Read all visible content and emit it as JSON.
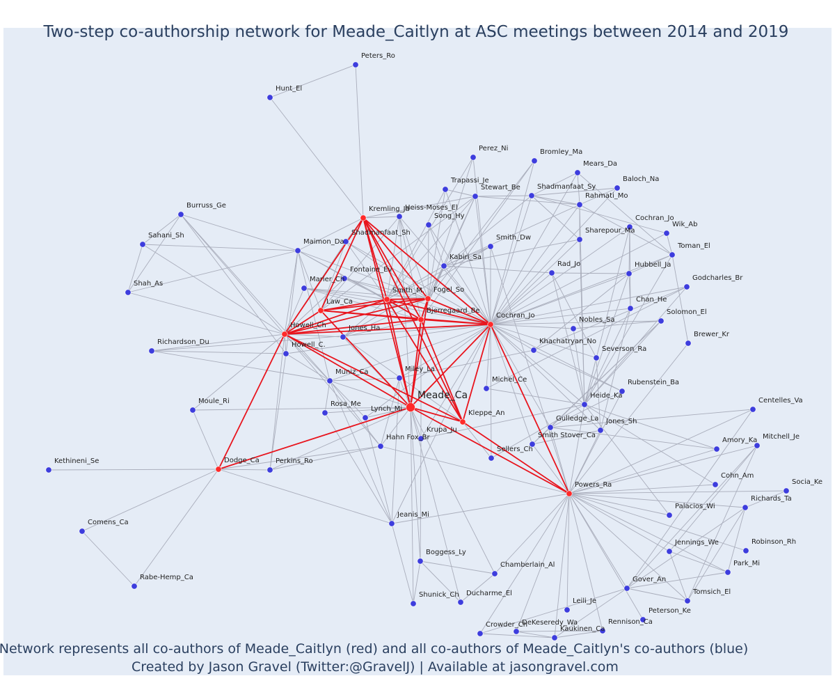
{
  "title": "Two-step co-authorship network for Meade_Caitlyn at ASC meetings between 2014 and 2019",
  "footer": {
    "line1": "Network represents all co-authors of Meade_Caitlyn (red) and all co-authors of Meade_Caitlyn's co-authors (blue)",
    "line2": "Created by Jason Gravel (Twitter:@GravelJ) | Available at jasongravel.com"
  },
  "colors": {
    "background": "#e5ecf6",
    "red_node": "#ff2a2a",
    "blue_node": "#3d3ddd",
    "red_edge": "#e8141d",
    "gray_edge": "#a9adbb",
    "text": "#2a3f5f"
  },
  "center": "Meade_Ca",
  "red_nodes": [
    "Meade_Ca",
    "Kremling_Ja",
    "Smith_M.",
    "Fogel_So",
    "Law_Ca",
    "Bjerregaard_Be",
    "Howell_Ch",
    "Cochran_Jo",
    "Kleppe_An",
    "Dodge_Ca",
    "Powers_Ra"
  ],
  "blue_nodes": [
    "Peters_Ro",
    "Hunt_El",
    "Perez_Ni",
    "Bromley_Ma",
    "Mears_Da",
    "Trapassi_Je",
    "Stewart_Be",
    "Shadmanfaat_Sy",
    "Baloch_Na",
    "Rahmati_Mo",
    "Burruss_Ge",
    "Heiss-Moses_El",
    "Song_Hy",
    "Cochran_Jo2",
    "Wik_Ab",
    "Sahani_Sh",
    "Shadmanfaat_Sh",
    "Maimon_Da",
    "Smith_Dw",
    "Sharepour_Ma",
    "Toman_El",
    "Kabiri_Sa",
    "Fontaine_Ev",
    "Rad_Jo",
    "Hubbell_Ja",
    "Shah_As",
    "Marier_Ch",
    "Godcharles_Br",
    "Chan_He",
    "Jones_Ha",
    "Nobles_Sa",
    "Solomon_El",
    "Richardson_Du",
    "Howell_C.",
    "Khachatryan_No",
    "Brewer_Kr",
    "Severson_Ra",
    "Miley_La",
    "Muniz_Ca",
    "Michel_Ce",
    "Rubenstein_Ba",
    "Moule_Ri",
    "Heide_Ka",
    "Centelles_Va",
    "Rosa_Me",
    "Lynch_Mi",
    "Gulledge_La",
    "Jones_Sh",
    "Krupa_Ju",
    "Smith_Stover_Ca",
    "Hahn_Fox_Br",
    "Amory_Ka",
    "Mitchell_Je",
    "Sellers_Ch",
    "Kethineni_Se",
    "Perkins_Ro",
    "Cohn_Am",
    "Socia_Ke",
    "Richards_Ta",
    "Palacios_Wi",
    "Jeanis_Mi",
    "Comens_Ca",
    "Robinson_Rh",
    "Jennings_We",
    "Boggess_Ly",
    "Chamberlain_Al",
    "Park_Mi",
    "Rabe-Hemp_Ca",
    "Gover_An",
    "Tomsich_El",
    "Shunick_Ch",
    "Ducharme_El",
    "Leili_Je",
    "Peterson_Ke",
    "Crowder_Ch",
    "DeKeseredy_Wa",
    "Rennison_Ca",
    "Kaukinen_Ca"
  ],
  "node_labels": {
    "Meade_Ca": "Meade_Ca",
    "Peters_Ro": "Peters_Ro",
    "Hunt_El": "Hunt_El",
    "Perez_Ni": "Perez_Ni",
    "Bromley_Ma": "Bromley_Ma",
    "Mears_Da": "Mears_Da",
    "Trapassi_Je": "Trapassi_Je",
    "Stewart_Be": "Stewart_Be",
    "Shadmanfaat_Sy": "Shadmanfaat_Sy",
    "Baloch_Na": "Baloch_Na",
    "Rahmati_Mo": "Rahmati_Mo",
    "Burruss_Ge": "Burruss_Ge",
    "Kremling_Ja": "Kremling_Ja",
    "Heiss-Moses_El": "Heiss-Moses_El",
    "Song_Hy": "Song_Hy",
    "Cochran_Jo2": "Cochran_Jo",
    "Wik_Ab": "Wik_Ab",
    "Sahani_Sh": "Sahani_Sh",
    "Shadmanfaat_Sh": "Shadmanfaat_Sh",
    "Maimon_Da": "Maimon_Da",
    "Smith_Dw": "Smith_Dw",
    "Sharepour_Ma": "Sharepour_Ma",
    "Toman_El": "Toman_El",
    "Kabiri_Sa": "Kabiri_Sa",
    "Fontaine_Ev": "Fontaine_Ev",
    "Rad_Jo": "Rad_Jo",
    "Hubbell_Ja": "Hubbell_Ja",
    "Shah_As": "Shah_As",
    "Marier_Ch": "Marier_Ch",
    "Smith_M.": "Smith_M.",
    "Fogel_So": "Fogel_So",
    "Godcharles_Br": "Godcharles_Br",
    "Law_Ca": "Law_Ca",
    "Bjerregaard_Be": "Bjerregaard_Be",
    "Chan_He": "Chan_He",
    "Cochran_Jo": "Cochran_Jo",
    "Howell_Ch": "Howell_Ch",
    "Jones_Ha": "Jones_Ha",
    "Nobles_Sa": "Nobles_Sa",
    "Solomon_El": "Solomon_El",
    "Richardson_Du": "Richardson_Du",
    "Howell_C.": "Howell_C.",
    "Khachatryan_No": "Khachatryan_No",
    "Brewer_Kr": "Brewer_Kr",
    "Severson_Ra": "Severson_Ra",
    "Miley_La": "Miley_La",
    "Muniz_Ca": "Muniz_Ca",
    "Michel_Ce": "Michel_Ce",
    "Rubenstein_Ba": "Rubenstein_Ba",
    "Moule_Ri": "Moule_Ri",
    "Heide_Ka": "Heide_Ka",
    "Centelles_Va": "Centelles_Va",
    "Rosa_Me": "Rosa_Me",
    "Lynch_Mi": "Lynch_Mi",
    "Kleppe_An": "Kleppe_An",
    "Gulledge_La": "Gulledge_La",
    "Jones_Sh": "Jones_Sh",
    "Krupa_Ju": "Krupa_Ju",
    "Smith_Stover_Ca": "Smith Stover_Ca",
    "Hahn_Fox_Br": "Hahn Fox_Br",
    "Amory_Ka": "Amory_Ka",
    "Mitchell_Je": "Mitchell_Je",
    "Sellers_Ch": "Sellers_Ch",
    "Kethineni_Se": "Kethineni_Se",
    "Dodge_Ca": "Dodge_Ca",
    "Perkins_Ro": "Perkins_Ro",
    "Cohn_Am": "Cohn_Am",
    "Socia_Ke": "Socia_Ke",
    "Powers_Ra": "Powers_Ra",
    "Richards_Ta": "Richards_Ta",
    "Palacios_Wi": "Palacios_Wi",
    "Jeanis_Mi": "Jeanis_Mi",
    "Comens_Ca": "Comens_Ca",
    "Robinson_Rh": "Robinson_Rh",
    "Jennings_We": "Jennings_We",
    "Boggess_Ly": "Boggess_Ly",
    "Chamberlain_Al": "Chamberlain_Al",
    "Park_Mi": "Park_Mi",
    "Rabe-Hemp_Ca": "Rabe-Hemp_Ca",
    "Gover_An": "Gover_An",
    "Tomsich_El": "Tomsich_El",
    "Shunick_Ch": "Shunick_Ch",
    "Ducharme_El": "Ducharme_El",
    "Leili_Je": "Leili_Je",
    "Peterson_Ke": "Peterson_Ke",
    "Crowder_Ch": "Crowder_Ch",
    "DeKeseredy_Wa": "DeKeseredy_Wa",
    "Rennison_Ca": "Rennison_Ca",
    "Kaukinen_Ca": "Kaukinen_Ca"
  }
}
